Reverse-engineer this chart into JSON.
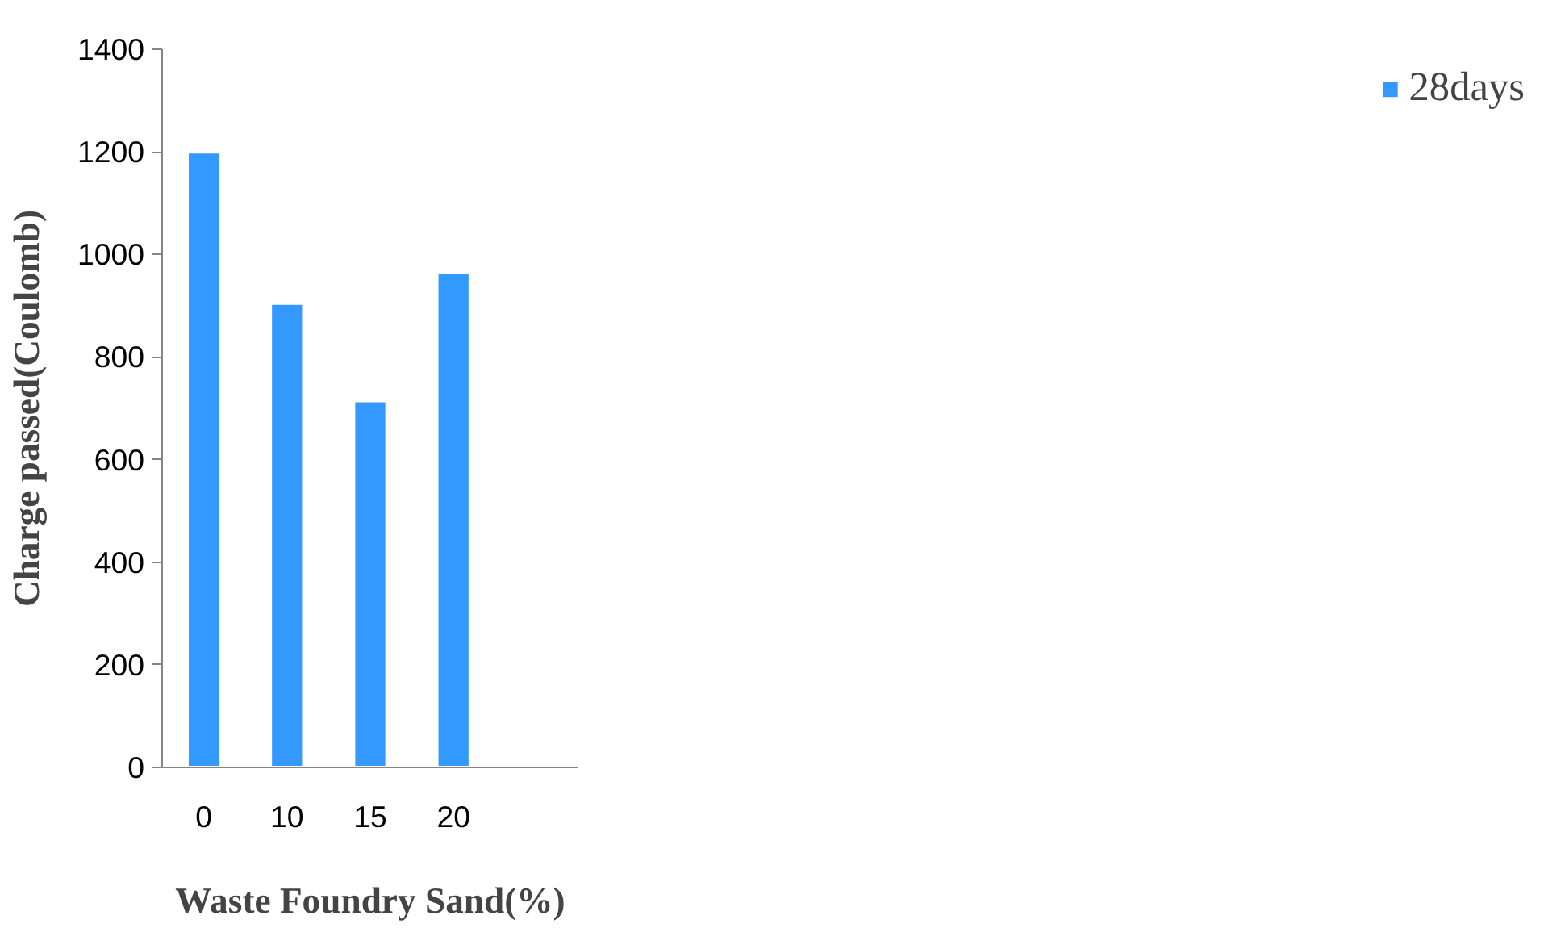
{
  "chart_data": {
    "type": "bar",
    "xlabel": "Waste Foundry Sand(%)",
    "ylabel": "Charge passed(Coulomb)",
    "categories": [
      "0",
      "10",
      "15",
      "20",
      null
    ],
    "series": [
      {
        "name": "28days",
        "color": "#3399ff",
        "values": [
          1200,
          905,
          715,
          965,
          null
        ]
      }
    ],
    "ylim": [
      0,
      1400
    ],
    "yticks": [
      0,
      200,
      400,
      600,
      800,
      1000,
      1200,
      1400
    ],
    "grid": false,
    "legend": "right"
  }
}
